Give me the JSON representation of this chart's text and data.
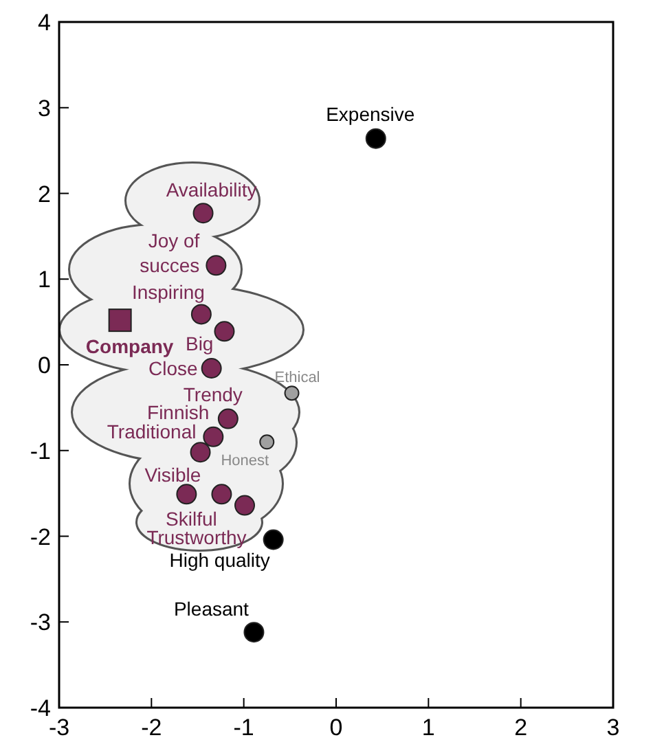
{
  "chart_data": {
    "type": "scatter",
    "xlim": [
      -3,
      3
    ],
    "ylim": [
      -4,
      4
    ],
    "xticks": [
      -3,
      -2,
      -1,
      0,
      1,
      2,
      3
    ],
    "yticks": [
      -4,
      -3,
      -2,
      -1,
      0,
      1,
      2,
      3,
      4
    ],
    "grid": false,
    "series": [
      {
        "color": "#7b2a55",
        "marker": "circle",
        "x": [
          -1.44,
          -1.3,
          -1.46,
          -1.21,
          -1.35,
          -1.17,
          -1.33,
          -1.47,
          -1.62,
          -1.24,
          -0.99
        ],
        "values": [
          1.77,
          1.16,
          0.59,
          0.39,
          -0.04,
          -0.63,
          -0.84,
          -1.02,
          -1.51,
          -1.51,
          -1.64
        ]
      },
      {
        "name": "Company",
        "color": "#7b2a55",
        "marker": "square",
        "x": [
          -2.34
        ],
        "values": [
          0.52
        ]
      },
      {
        "color": "#a0a0a0",
        "marker": "circle",
        "x": [
          -0.48,
          -0.75
        ],
        "values": [
          -0.33,
          -0.9
        ]
      },
      {
        "color": "#000000",
        "marker": "circle",
        "x": [
          0.43,
          -0.68,
          -0.89
        ],
        "values": [
          2.64,
          -2.04,
          -3.12
        ]
      }
    ],
    "annotations": [
      {
        "text": "Availability",
        "x": -1.44,
        "y": 1.77
      },
      {
        "text": "Joy of\nsucces",
        "x": -1.3,
        "y": 1.16
      },
      {
        "text": "Inspiring",
        "x": -1.46,
        "y": 0.59
      },
      {
        "text": "Big",
        "x": -1.21,
        "y": 0.39
      },
      {
        "text": "Close",
        "x": -1.35,
        "y": -0.04
      },
      {
        "text": "Trendy",
        "x": -1.17,
        "y": -0.63
      },
      {
        "text": "Finnish",
        "x": -1.33,
        "y": -0.84
      },
      {
        "text": "Traditional",
        "x": -1.47,
        "y": -1.02
      },
      {
        "text": "Visible",
        "x": -1.62,
        "y": -1.51
      },
      {
        "text": "Skilful",
        "x": -1.24,
        "y": -1.51
      },
      {
        "text": "Trustworthy",
        "x": -0.99,
        "y": -1.64
      },
      {
        "text": "Ethical",
        "x": -0.48,
        "y": -0.33
      },
      {
        "text": "Honest",
        "x": -0.75,
        "y": -0.9
      },
      {
        "text": "Expensive",
        "x": 0.43,
        "y": 2.64
      },
      {
        "text": "High quality",
        "x": -0.68,
        "y": -2.04
      },
      {
        "text": "Pleasant",
        "x": -0.89,
        "y": -3.12
      }
    ]
  }
}
